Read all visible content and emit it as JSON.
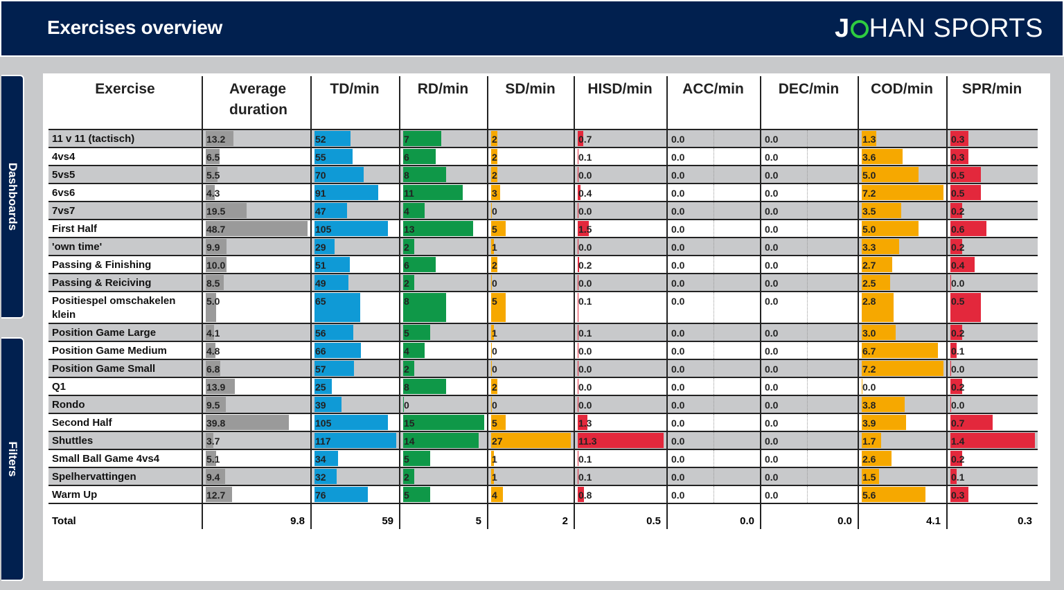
{
  "header": {
    "title": "Exercises overview",
    "logo_left": "J",
    "logo_right": "HAN SPORTS"
  },
  "sidebar": {
    "dashboards_label": "Dashboards",
    "filters_label": "Filters"
  },
  "columns": [
    {
      "key": "exercise",
      "label": "Exercise"
    },
    {
      "key": "avg_duration",
      "label": "Average duration",
      "color": "#9a9a9a",
      "max": 48.7
    },
    {
      "key": "td",
      "label": "TD/min",
      "color": "#0f9ad6",
      "max": 117
    },
    {
      "key": "rd",
      "label": "RD/min",
      "color": "#0f9848",
      "max": 15
    },
    {
      "key": "sd",
      "label": "SD/min",
      "color": "#f6a800",
      "max": 27
    },
    {
      "key": "hisd",
      "label": "HISD/min",
      "color": "#e3283c",
      "max": 11.3
    },
    {
      "key": "acc",
      "label": "ACC/min",
      "color": "#888888",
      "max": 1
    },
    {
      "key": "dec",
      "label": "DEC/min",
      "color": "#888888",
      "max": 1
    },
    {
      "key": "cod",
      "label": "COD/min",
      "color": "#f6a800",
      "max": 7.2
    },
    {
      "key": "spr",
      "label": "SPR/min",
      "color": "#e3283c",
      "max": 1.4
    }
  ],
  "rows": [
    {
      "name": "11 v 11 (tactisch)",
      "values": [
        "13.2",
        "52",
        "7",
        "2",
        "0.7",
        "0.0",
        "0.0",
        "1.3",
        "0.3"
      ]
    },
    {
      "name": "4vs4",
      "values": [
        "6.5",
        "55",
        "6",
        "2",
        "0.1",
        "0.0",
        "0.0",
        "3.6",
        "0.3"
      ]
    },
    {
      "name": "5vs5",
      "values": [
        "5.5",
        "70",
        "8",
        "2",
        "0.0",
        "0.0",
        "0.0",
        "5.0",
        "0.5"
      ]
    },
    {
      "name": "6vs6",
      "values": [
        "4.3",
        "91",
        "11",
        "3",
        "0.4",
        "0.0",
        "0.0",
        "7.2",
        "0.5"
      ]
    },
    {
      "name": "7vs7",
      "values": [
        "19.5",
        "47",
        "4",
        "0",
        "0.0",
        "0.0",
        "0.0",
        "3.5",
        "0.2"
      ]
    },
    {
      "name": "First Half",
      "values": [
        "48.7",
        "105",
        "13",
        "5",
        "1.5",
        "0.0",
        "0.0",
        "5.0",
        "0.6"
      ]
    },
    {
      "name": "'own time'",
      "values": [
        "9.9",
        "29",
        "2",
        "1",
        "0.0",
        "0.0",
        "0.0",
        "3.3",
        "0.2"
      ]
    },
    {
      "name": "Passing & Finishing",
      "values": [
        "10.0",
        "51",
        "6",
        "2",
        "0.2",
        "0.0",
        "0.0",
        "2.7",
        "0.4"
      ]
    },
    {
      "name": "Passing & Reiciving",
      "values": [
        "8.5",
        "49",
        "2",
        "0",
        "0.0",
        "0.0",
        "0.0",
        "2.5",
        "0.0"
      ]
    },
    {
      "name": "Positiespel omschakelen klein",
      "values": [
        "5.0",
        "65",
        "8",
        "5",
        "0.1",
        "0.0",
        "0.0",
        "2.8",
        "0.5"
      ]
    },
    {
      "name": "Position Game Large",
      "values": [
        "4.1",
        "56",
        "5",
        "1",
        "0.1",
        "0.0",
        "0.0",
        "3.0",
        "0.2"
      ]
    },
    {
      "name": "Position Game Medium",
      "values": [
        "4.8",
        "66",
        "4",
        "0",
        "0.0",
        "0.0",
        "0.0",
        "6.7",
        "0.1"
      ]
    },
    {
      "name": "Position Game Small",
      "values": [
        "6.8",
        "57",
        "2",
        "0",
        "0.0",
        "0.0",
        "0.0",
        "7.2",
        "0.0"
      ]
    },
    {
      "name": "Q1",
      "values": [
        "13.9",
        "25",
        "8",
        "2",
        "0.0",
        "0.0",
        "0.0",
        "0.0",
        "0.2"
      ]
    },
    {
      "name": "Rondo",
      "values": [
        "9.5",
        "39",
        "0",
        "0",
        "0.0",
        "0.0",
        "0.0",
        "3.8",
        "0.0"
      ]
    },
    {
      "name": "Second Half",
      "values": [
        "39.8",
        "105",
        "15",
        "5",
        "1.3",
        "0.0",
        "0.0",
        "3.9",
        "0.7"
      ]
    },
    {
      "name": "Shuttles",
      "values": [
        "3.7",
        "117",
        "14",
        "27",
        "11.3",
        "0.0",
        "0.0",
        "1.7",
        "1.4"
      ]
    },
    {
      "name": "Small Ball Game 4vs4",
      "values": [
        "5.1",
        "34",
        "5",
        "1",
        "0.1",
        "0.0",
        "0.0",
        "2.6",
        "0.2"
      ]
    },
    {
      "name": "Spelhervattingen",
      "values": [
        "9.4",
        "32",
        "2",
        "1",
        "0.1",
        "0.0",
        "0.0",
        "1.5",
        "0.1"
      ]
    },
    {
      "name": "Warm Up",
      "values": [
        "12.7",
        "76",
        "5",
        "4",
        "0.8",
        "0.0",
        "0.0",
        "5.6",
        "0.3"
      ]
    }
  ],
  "total": {
    "label": "Total",
    "values": [
      "9.8",
      "59",
      "5",
      "2",
      "0.5",
      "0.0",
      "0.0",
      "4.1",
      "0.3"
    ]
  }
}
